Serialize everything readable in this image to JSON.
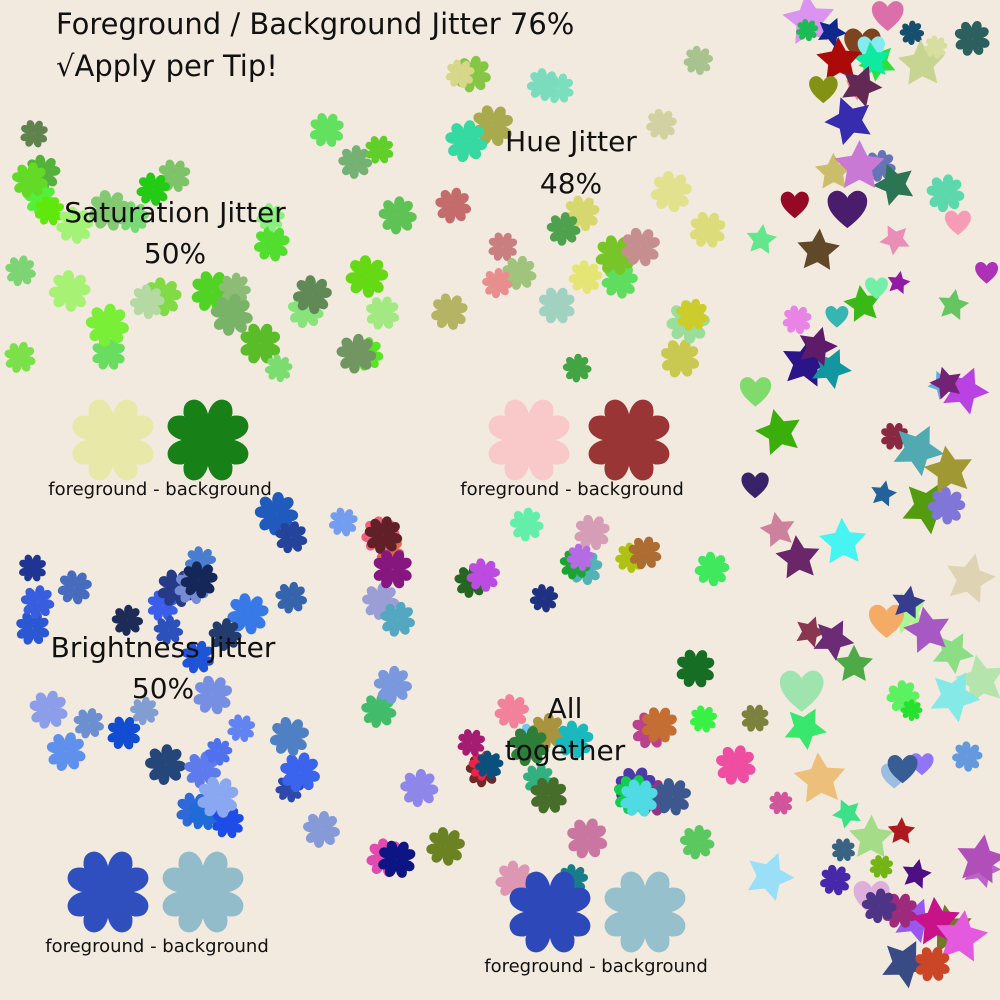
{
  "title": {
    "line1": "Foreground / Background Jitter 76%",
    "line2": "√Apply per Tip!"
  },
  "panels": [
    {
      "label": [
        "Saturation Jitter",
        "50%"
      ],
      "caption": "foreground  - background"
    },
    {
      "label": [
        "Hue Jitter",
        "48%"
      ],
      "caption": "foreground  - background"
    },
    {
      "label": [
        "Brightness Jitter",
        "50%"
      ],
      "caption": "foreground  - background"
    },
    {
      "label": [
        "All",
        "together"
      ],
      "caption": "foreground  - background"
    }
  ]
}
